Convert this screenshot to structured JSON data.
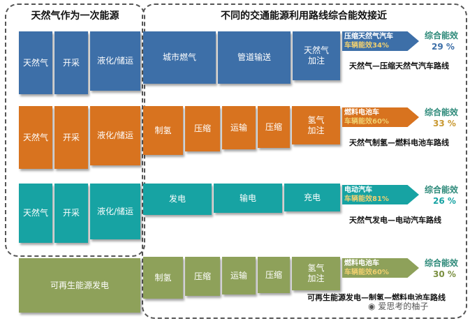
{
  "headers": {
    "left": "天然气作为一次能源",
    "right": "不同的交通能源利用路线综合能效接近"
  },
  "rows": [
    {
      "id": "cng",
      "primary": [
        "天然气",
        "开采",
        "液化/储运"
      ],
      "steps": [
        "城市燃气",
        "管道输送",
        "天然气\n加注"
      ],
      "arrow_line1": "压缩天然气汽车",
      "arrow_line2": "车辆能效34%",
      "eff_label": "综合能效",
      "eff_value": "29 %",
      "route": "天然气—压缩天然气汽车路线",
      "color": "#3d6fa8"
    },
    {
      "id": "h2-ng",
      "primary": [
        "天然气",
        "开采",
        "液化/储运"
      ],
      "steps": [
        "制氢",
        "压缩",
        "运输",
        "压缩",
        "氢气\n加注"
      ],
      "arrow_line1": "燃料电池车",
      "arrow_line2": "车辆能效60%",
      "eff_label": "综合能效",
      "eff_value": "33 %",
      "route": "天然气制氢—燃料电池车路线",
      "color": "#d8731f"
    },
    {
      "id": "ev",
      "primary": [
        "天然气",
        "开采",
        "液化/储运"
      ],
      "steps": [
        "发电",
        "输电",
        "充电"
      ],
      "arrow_line1": "电动汽车",
      "arrow_line2": "车辆能效81%",
      "eff_label": "综合能效",
      "eff_value": "26 %",
      "route": "天然气发电—电动汽车路线",
      "color": "#17a3a3"
    },
    {
      "id": "h2-renew",
      "primary": [
        "可再生能源发电"
      ],
      "steps": [
        "制氢",
        "压缩",
        "运输",
        "压缩",
        "氢气\n加注"
      ],
      "arrow_line1": "燃料电池车",
      "arrow_line2": "车辆能效60%",
      "eff_label": "综合能效",
      "eff_value": "30 %",
      "route": "可再生能源发电—制氢—燃料电池车路线",
      "color": "#8ea15a"
    }
  ],
  "watermark": "爱思考的柚子"
}
